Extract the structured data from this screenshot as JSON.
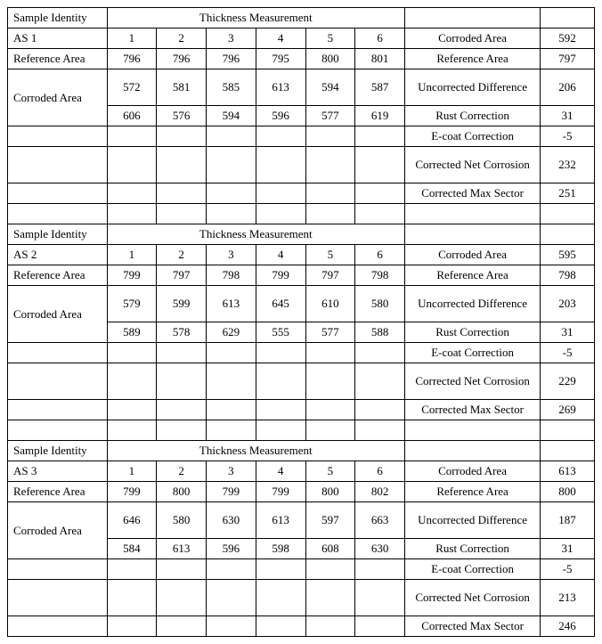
{
  "headers": {
    "sample_identity": "Sample Identity",
    "thickness_measurement": "Thickness Measurement",
    "cols": [
      "1",
      "2",
      "3",
      "4",
      "5",
      "6"
    ],
    "reference_area": "Reference Area",
    "corroded_area": "Corroded Area",
    "uncorrected_difference": "Uncorrected Difference",
    "rust_correction": "Rust Correction",
    "ecoat_correction": "E-coat Correction",
    "corrected_net_corrosion": "Corrected Net Corrosion",
    "corrected_max_sector": "Corrected Max Sector"
  },
  "samples": [
    {
      "id": "AS 1",
      "reference_row": [
        "796",
        "796",
        "796",
        "795",
        "800",
        "801"
      ],
      "corroded_row1": [
        "572",
        "581",
        "585",
        "613",
        "594",
        "587"
      ],
      "corroded_row2": [
        "606",
        "576",
        "594",
        "596",
        "577",
        "619"
      ],
      "results": {
        "corroded_area": "592",
        "reference_area": "797",
        "uncorrected_difference": "206",
        "rust_correction": "31",
        "ecoat_correction": "-5",
        "corrected_net_corrosion": "232",
        "corrected_max_sector": "251"
      }
    },
    {
      "id": "AS 2",
      "reference_row": [
        "799",
        "797",
        "798",
        "799",
        "797",
        "798"
      ],
      "corroded_row1": [
        "579",
        "599",
        "613",
        "645",
        "610",
        "580"
      ],
      "corroded_row2": [
        "589",
        "578",
        "629",
        "555",
        "577",
        "588"
      ],
      "results": {
        "corroded_area": "595",
        "reference_area": "798",
        "uncorrected_difference": "203",
        "rust_correction": "31",
        "ecoat_correction": "-5",
        "corrected_net_corrosion": "229",
        "corrected_max_sector": "269"
      }
    },
    {
      "id": "AS 3",
      "reference_row": [
        "799",
        "800",
        "799",
        "799",
        "800",
        "802"
      ],
      "corroded_row1": [
        "646",
        "580",
        "630",
        "613",
        "597",
        "663"
      ],
      "corroded_row2": [
        "584",
        "613",
        "596",
        "598",
        "608",
        "630"
      ],
      "results": {
        "corroded_area": "613",
        "reference_area": "800",
        "uncorrected_difference": "187",
        "rust_correction": "31",
        "ecoat_correction": "-5",
        "corrected_net_corrosion": "213",
        "corrected_max_sector": "246"
      }
    }
  ],
  "style": {
    "font_family": "Times New Roman",
    "font_size_pt": 10,
    "border_color": "#000000",
    "background_color": "#ffffff",
    "text_color": "#000000"
  }
}
